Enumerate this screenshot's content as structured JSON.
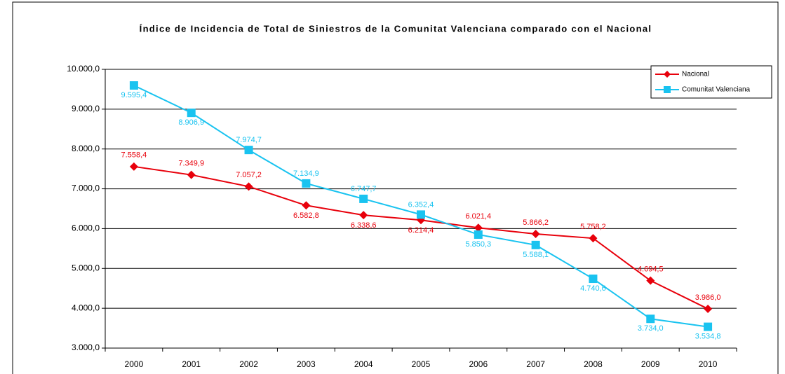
{
  "chart_data": {
    "type": "line",
    "title": "Índice de Incidencia de Total de Siniestros de la Comunitat Valenciana comparado con el Nacional",
    "categories": [
      "2000",
      "2001",
      "2002",
      "2003",
      "2004",
      "2005",
      "2006",
      "2007",
      "2008",
      "2009",
      "2010"
    ],
    "series": [
      {
        "name": "Nacional",
        "color": "#e8000b",
        "marker": "diamond",
        "values": [
          7558.4,
          7349.9,
          7057.2,
          6582.8,
          6338.6,
          6214.4,
          6021.4,
          5866.2,
          5758.2,
          4694.5,
          3986.0
        ],
        "value_labels": [
          "7.558,4",
          "7.349,9",
          "7.057,2",
          "6.582,8",
          "6.338,6",
          "6.214,4",
          "6.021,4",
          "5.866,2",
          "5.758,2",
          "4.694,5",
          "3.986,0"
        ]
      },
      {
        "name": "Comunitat Valenciana",
        "color": "#19c3f0",
        "marker": "square",
        "values": [
          9595.4,
          8906.9,
          7974.7,
          7134.9,
          6747.7,
          6352.4,
          5850.3,
          5588.1,
          4740.6,
          3734.0,
          3534.8
        ],
        "value_labels": [
          "9.595,4",
          "8.906,9",
          "7.974,7",
          "7.134,9",
          "6.747,7",
          "6.352,4",
          "5.850,3",
          "5.588,1",
          "4.740,6",
          "3.734,0",
          "3.534,8"
        ]
      }
    ],
    "ylim": [
      3000,
      10000
    ],
    "yticks": [
      {
        "value": 3000,
        "label": "3.000,0"
      },
      {
        "value": 4000,
        "label": "4.000,0"
      },
      {
        "value": 5000,
        "label": "5.000,0"
      },
      {
        "value": 6000,
        "label": "6.000,0"
      },
      {
        "value": 7000,
        "label": "7.000,0"
      },
      {
        "value": 8000,
        "label": "8.000,0"
      },
      {
        "value": 9000,
        "label": "9.000,0"
      },
      {
        "value": 10000,
        "label": "10.000,0"
      }
    ],
    "grid": true,
    "legend": "top-right"
  }
}
